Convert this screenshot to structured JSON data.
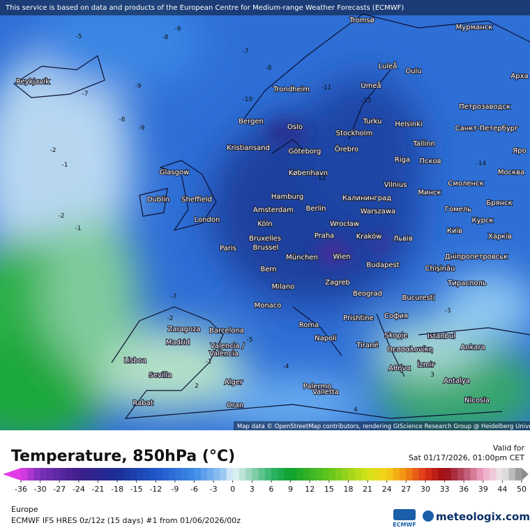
{
  "header": {
    "notice": "This service is based on data and products of the European Centre for Medium-range Weather Forecasts (ECMWF)",
    "attribution": "Map data © OpenStreetMap contributors, rendering GIScience Research Group @ Heidelberg University"
  },
  "cities": [
    "Tromsø",
    "Мурманск",
    "Reykjavík",
    "Luleå",
    "Oulu",
    "Арха",
    "Trondheim",
    "Umeå",
    "Петрозаводск",
    "Bergen",
    "Oslo",
    "Turku",
    "Helsinki",
    "Санкт-Петербург",
    "Stockholm",
    "Kristiansand",
    "Göteborg",
    "Örebro",
    "Tallinn",
    "Яро",
    "Glasgow",
    "Riga",
    "Псков",
    "Москва",
    "København",
    "Vilnius",
    "Минск",
    "Смоленск",
    "Dublin",
    "Sheffield",
    "Hamburg",
    "Калининград",
    "Брянск",
    "Amsterdam",
    "Berlin",
    "Warszawa",
    "Гомель",
    "London",
    "Köln",
    "Wrocław",
    "Курск",
    "Київ",
    "Харків",
    "Bruxelles",
    "Brussel",
    "Paris",
    "Praha",
    "Kraków",
    "Львів",
    "München",
    "Wien",
    "Budapest",
    "Дніпропетровськ",
    "Chișinău",
    "Bern",
    "Milano",
    "Zagreb",
    "Тирасполь",
    "Beograd",
    "Bucuresti",
    "Monaco",
    "Prishtine",
    "София",
    "Zaragoza",
    "Barcelona",
    "Roma",
    "Skopje",
    "Istanbul",
    "Madrid",
    "Napoli",
    "Tiranë",
    "Θεσσαλονίκη",
    "Ankara",
    "Valencia /",
    "València",
    "Lisboa",
    "Sevilla",
    "Αθήνα",
    "İzmir",
    "Palermo",
    "Alger",
    "Antalya",
    "Rabat",
    "Oran",
    "Valletta",
    "Nicosia"
  ],
  "contour_labels": [
    -5,
    -9,
    -8,
    -7,
    -8,
    -9,
    -8,
    -9,
    -7,
    -10,
    -2,
    -1,
    -2,
    -1,
    -7,
    -2,
    -5,
    -4,
    -3,
    -1,
    2,
    4,
    3,
    -11,
    -13,
    -14,
    -12
  ],
  "legend": {
    "title": "Temperature, 850hPa (°C)",
    "valid_label": "Valid for",
    "valid_time": "Sat 01/17/2026, 01:00pm CET",
    "ticks": [
      -36,
      -30,
      -27,
      -24,
      -21,
      -18,
      -15,
      -12,
      -9,
      -6,
      -3,
      0,
      3,
      6,
      9,
      12,
      15,
      18,
      21,
      24,
      27,
      30,
      33,
      36,
      39,
      44,
      50
    ]
  },
  "footer": {
    "region": "Europe",
    "model": "ECMWF IFS HRES 0z/12z (15 days) #1 from  01/06/2026/00z",
    "ecmwf": "ECMWF",
    "brand": "meteologix.com"
  }
}
